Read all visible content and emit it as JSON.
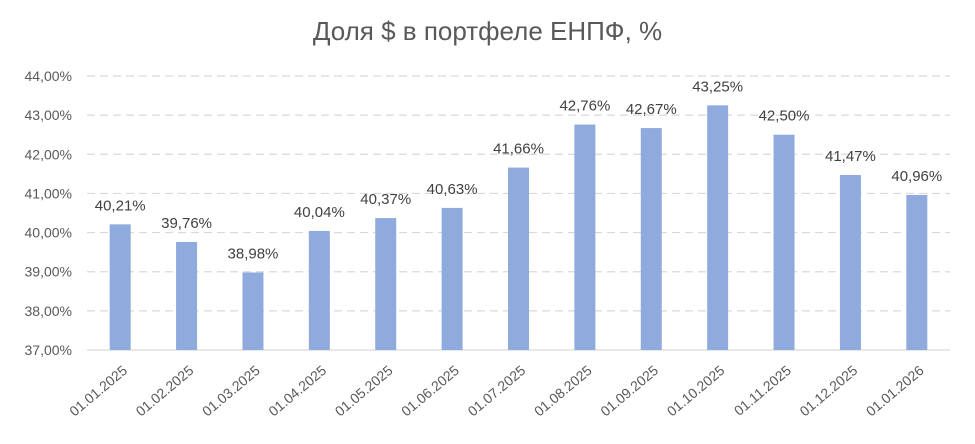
{
  "chart_data": {
    "type": "bar",
    "title": "Доля $ в портфеле ЕНПФ, %",
    "xlabel": "",
    "ylabel": "",
    "categories": [
      "01.01.2025",
      "01.02.2025",
      "01.03.2025",
      "01.04.2025",
      "01.05.2025",
      "01.06.2025",
      "01.07.2025",
      "01.08.2025",
      "01.09.2025",
      "01.10.2025",
      "01.11.2025",
      "01.12.2025",
      "01.01.2026"
    ],
    "values": [
      40.21,
      39.76,
      38.98,
      40.04,
      40.37,
      40.63,
      41.66,
      42.76,
      42.67,
      43.25,
      42.5,
      41.47,
      40.96
    ],
    "data_labels": [
      "40,21%",
      "39,76%",
      "38,98%",
      "40,04%",
      "40,37%",
      "40,63%",
      "41,66%",
      "42,76%",
      "42,67%",
      "43,25%",
      "42,50%",
      "41,47%",
      "40,96%"
    ],
    "ylim": [
      37,
      44
    ],
    "y_ticks": [
      37,
      38,
      39,
      40,
      41,
      42,
      43,
      44
    ],
    "y_tick_labels": [
      "37,00%",
      "38,00%",
      "39,00%",
      "40,00%",
      "41,00%",
      "42,00%",
      "43,00%",
      "44,00%"
    ],
    "grid": true,
    "legend": "none",
    "colors": {
      "bar": "#8faadc",
      "grid": "#d9d9d9",
      "text": "#595959",
      "label": "#404040"
    }
  }
}
